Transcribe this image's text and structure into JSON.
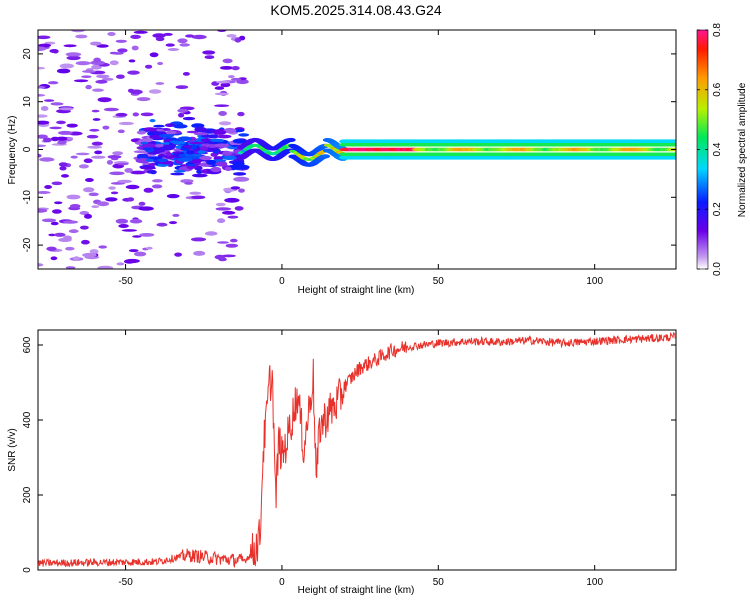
{
  "title": "KOM5.2025.314.08.43.G24",
  "chart_data": [
    {
      "type": "heatmap",
      "xlabel": "Height of straight line (km)",
      "ylabel": "Frequency (Hz)",
      "xlim": [
        -78,
        126
      ],
      "ylim": [
        -25,
        25
      ],
      "xticks": [
        "-50",
        "0",
        "50",
        "100"
      ],
      "xtick_values": [
        -50,
        0,
        50,
        100
      ],
      "yticks": [
        "-20",
        "-10",
        "0",
        "10",
        "20"
      ],
      "ytick_values": [
        -20,
        -10,
        0,
        10,
        20
      ],
      "colorbar": {
        "label": "Normalized spectral amplitude",
        "range": [
          0,
          0.8
        ],
        "ticks": [
          "0.0",
          "0.2",
          "0.4",
          "0.6",
          "0.8"
        ],
        "tick_values": [
          0,
          0.2,
          0.4,
          0.6,
          0.8
        ]
      },
      "features": [
        {
          "x_range": [
            -78,
            -13
          ],
          "f_range": [
            -25,
            25
          ],
          "amplitude_max": 0.15
        },
        {
          "x_range": [
            -45,
            -15
          ],
          "f_range": [
            -5,
            5
          ],
          "amplitude_max": 0.3
        },
        {
          "x_range": [
            -12,
            20
          ],
          "f_center": 0,
          "amplitude_max": 0.6
        },
        {
          "x_range": [
            20,
            43
          ],
          "f_center": 0,
          "amplitude_max": 0.8
        },
        {
          "x_range": [
            43,
            126
          ],
          "f_center": 0,
          "amplitude_max": 0.6
        }
      ]
    },
    {
      "type": "line",
      "xlabel": "Height of straight line (km)",
      "ylabel": "SNR (v/v)",
      "xlim": [
        -78,
        126
      ],
      "ylim": [
        0,
        640
      ],
      "xticks": [
        "-50",
        "0",
        "50",
        "100"
      ],
      "xtick_values": [
        -50,
        0,
        50,
        100
      ],
      "yticks": [
        "0",
        "200",
        "400",
        "600"
      ],
      "ytick_values": [
        0,
        200,
        400,
        600
      ],
      "series": [
        {
          "color": "#e8312b",
          "x": [
            -78,
            -60,
            -40,
            -30,
            -20,
            -12,
            -9,
            -7,
            -6,
            -5,
            -4,
            -3,
            -2,
            -1,
            0,
            2,
            5,
            7,
            10,
            11,
            12,
            15,
            18,
            20,
            25,
            30,
            35,
            40,
            45,
            50,
            60,
            70,
            80,
            90,
            100,
            110,
            120,
            126
          ],
          "y": [
            18,
            20,
            22,
            40,
            30,
            25,
            50,
            90,
            320,
            400,
            500,
            510,
            180,
            350,
            300,
            360,
            470,
            320,
            520,
            230,
            380,
            420,
            450,
            490,
            540,
            560,
            585,
            595,
            600,
            605,
            610,
            608,
            612,
            605,
            610,
            615,
            618,
            622
          ]
        }
      ]
    }
  ]
}
